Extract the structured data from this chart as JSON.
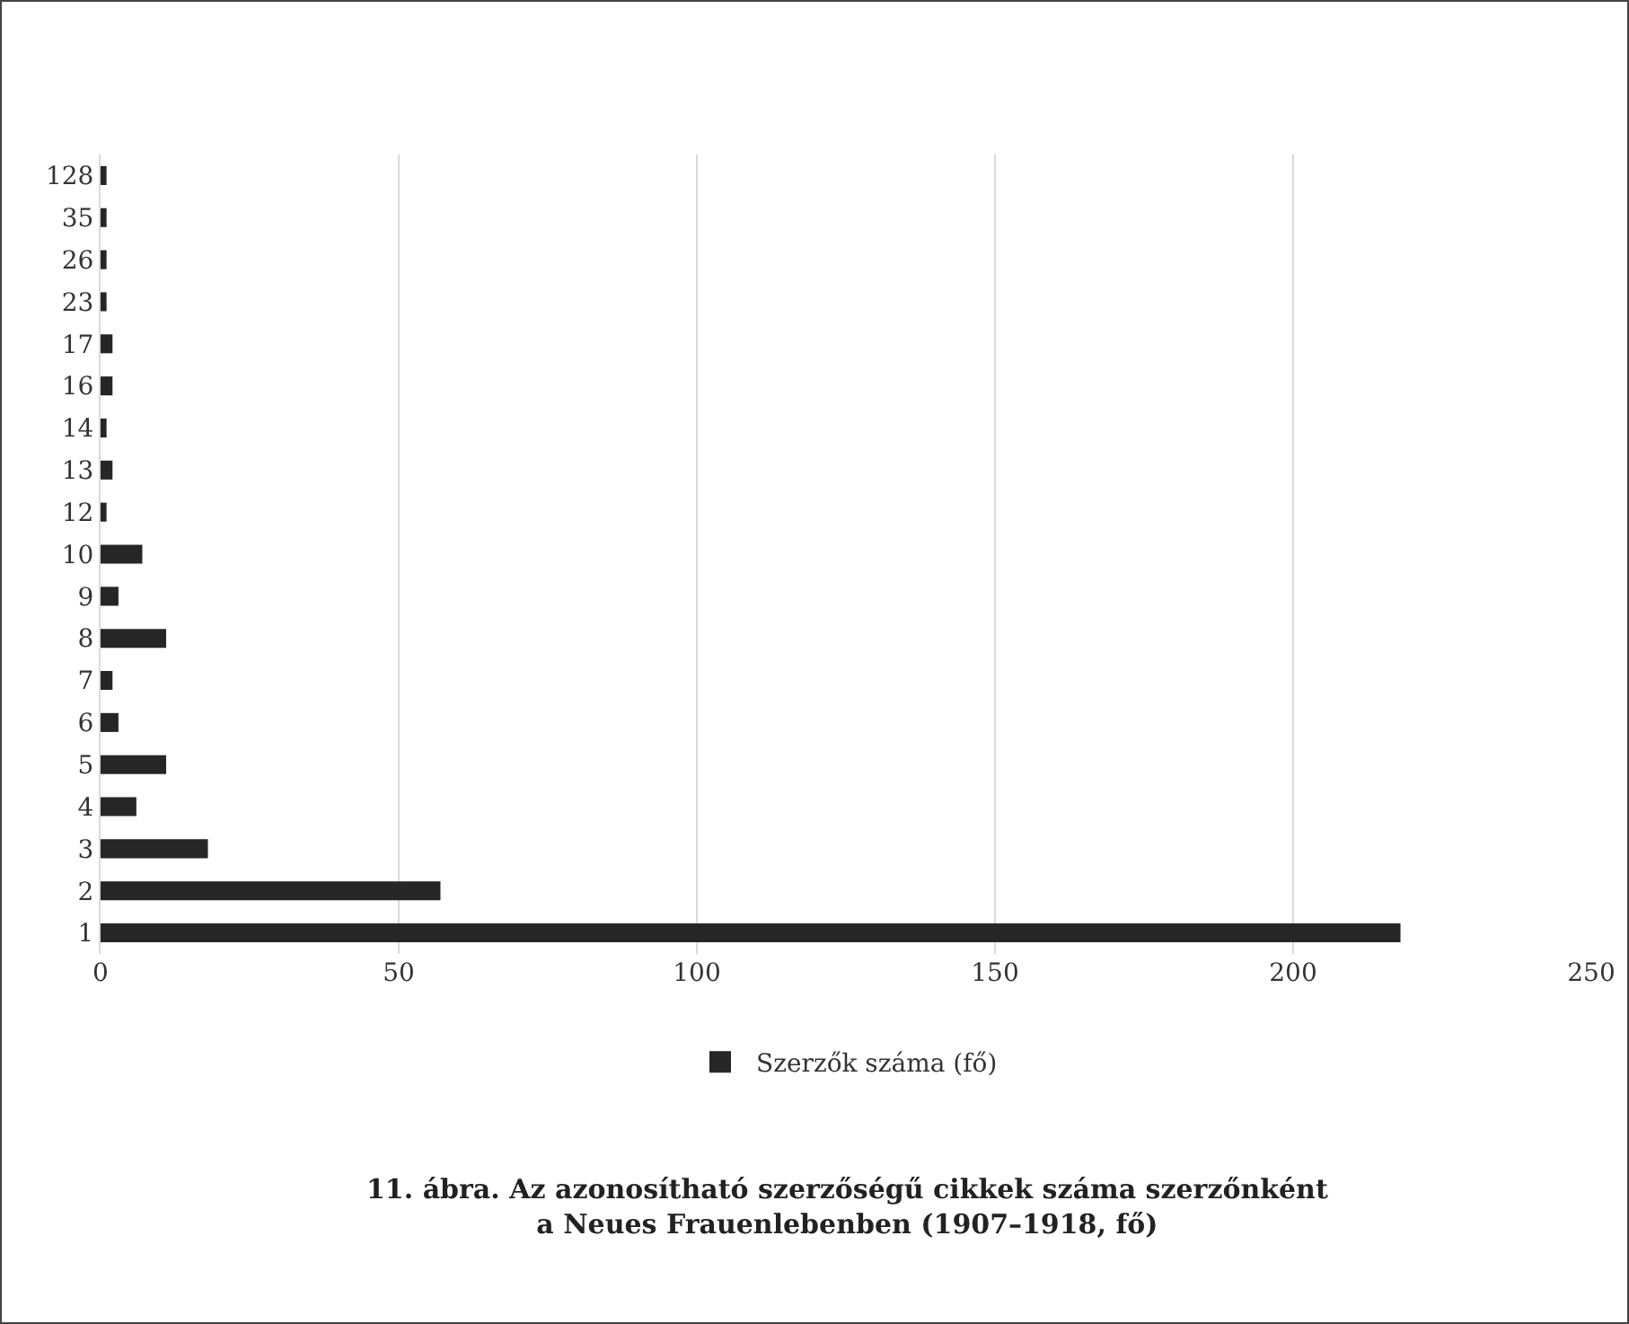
{
  "chart_data": {
    "type": "bar",
    "orientation": "horizontal",
    "title": "11. ábra. Az azonosítható szerzőségű cikkek száma szerzőnként\na Neues Frauenlebenben (1907–1918, fő)",
    "categories": [
      "128",
      "35",
      "26",
      "23",
      "17",
      "16",
      "14",
      "13",
      "12",
      "10",
      "9",
      "8",
      "7",
      "6",
      "5",
      "4",
      "3",
      "2",
      "1"
    ],
    "series": [
      {
        "name": "Szerzők száma (fő)",
        "color": "#262626",
        "values": [
          1,
          1,
          1,
          1,
          2,
          2,
          1,
          2,
          1,
          7,
          3,
          11,
          2,
          3,
          11,
          6,
          18,
          57,
          218
        ]
      }
    ],
    "xlim": [
      0,
      250
    ],
    "xticks": [
      0,
      50,
      100,
      150,
      200,
      250
    ],
    "grid": "x",
    "legend": "bottom"
  }
}
